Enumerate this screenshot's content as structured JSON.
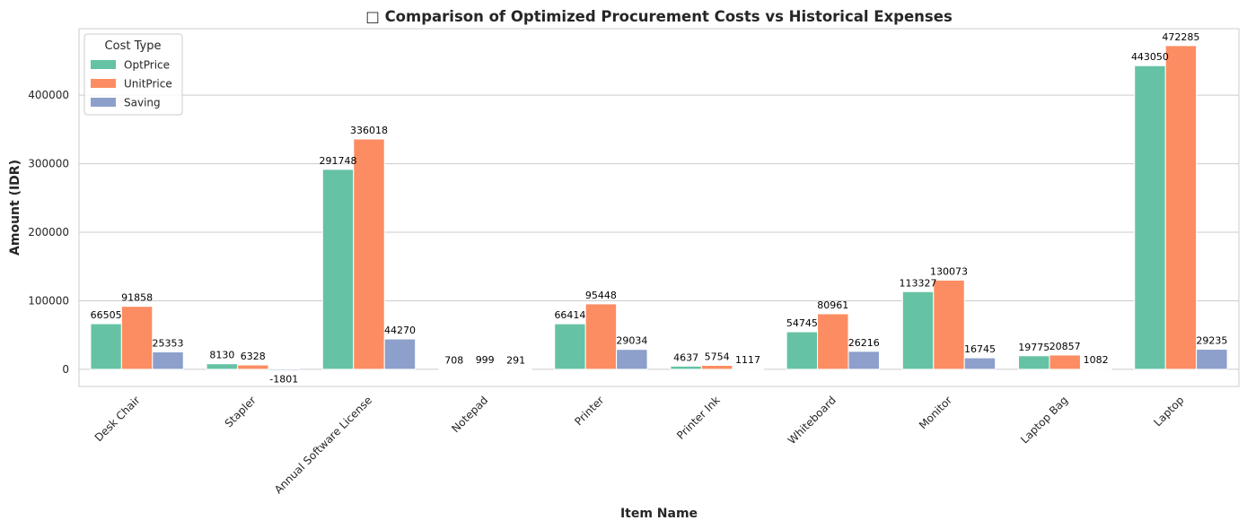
{
  "chart_data": {
    "type": "bar",
    "title": "□ Comparison of Optimized Procurement Costs vs Historical Expenses",
    "xlabel": "Item Name",
    "ylabel": "Amount (IDR)",
    "categories": [
      "Desk Chair",
      "Stapler",
      "Annual Software License",
      "Notepad",
      "Printer",
      "Printer Ink",
      "Whiteboard",
      "Monitor",
      "Laptop Bag",
      "Laptop"
    ],
    "series": [
      {
        "name": "OptPrice",
        "color": "#66c2a5",
        "values": [
          66505,
          8130,
          291748,
          708,
          66414,
          4637,
          54745,
          113327,
          19775,
          443050
        ]
      },
      {
        "name": "UnitPrice",
        "color": "#fc8d62",
        "values": [
          91858,
          6328,
          336018,
          999,
          95448,
          5754,
          80961,
          130073,
          20857,
          472285
        ]
      },
      {
        "name": "Saving",
        "color": "#8da0cb",
        "values": [
          25353,
          -1801,
          44270,
          291,
          29034,
          1117,
          26216,
          16745,
          1082,
          29235
        ]
      }
    ],
    "ylim": [
      -25000,
      497000
    ],
    "yticks": [
      0,
      100000,
      200000,
      300000,
      400000
    ],
    "yticks_labels": [
      "0",
      "100000",
      "200000",
      "300000",
      "400000"
    ],
    "legend": {
      "title": "Cost Type",
      "position": "top-left"
    },
    "grid": "y"
  }
}
